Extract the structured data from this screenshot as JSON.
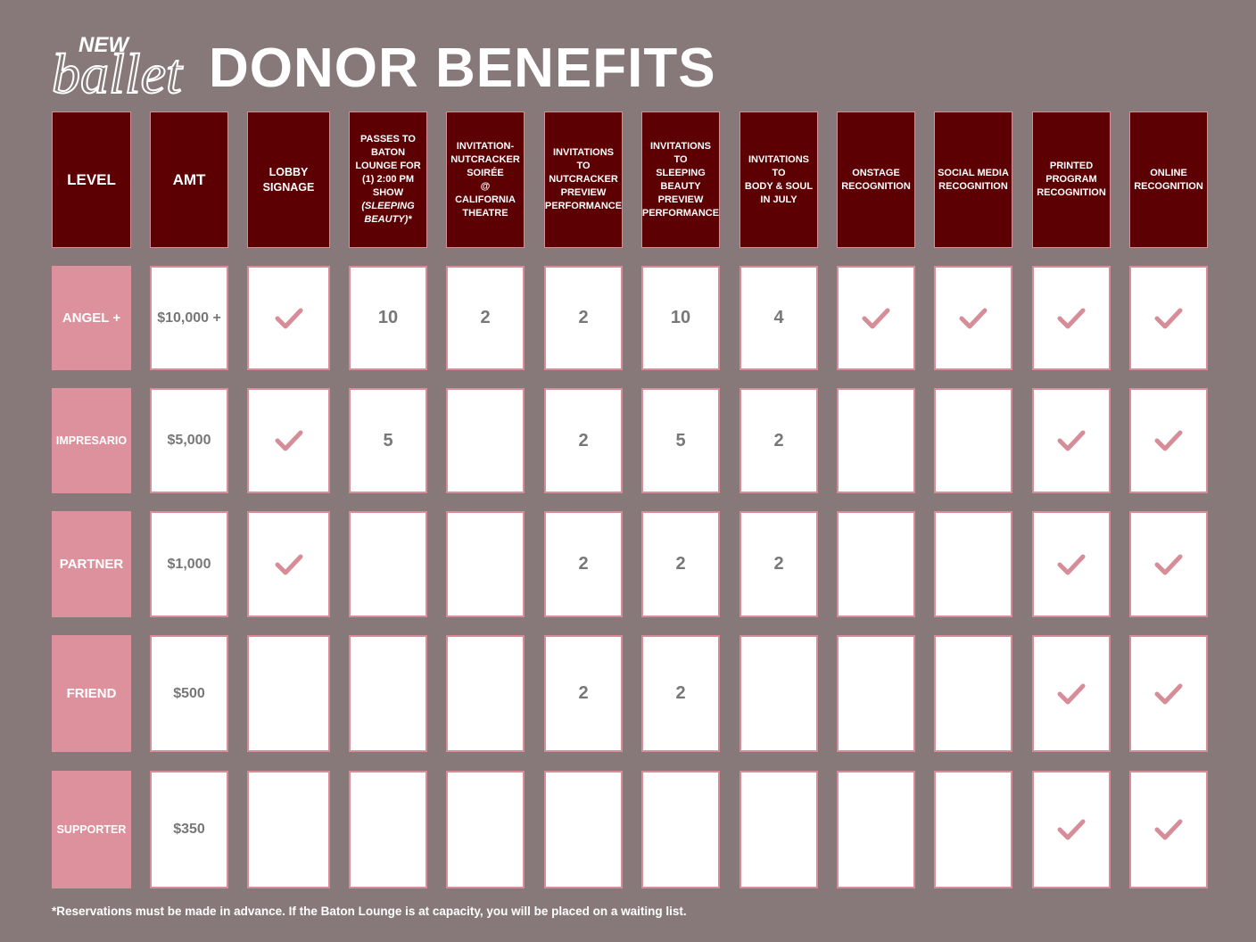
{
  "logo": {
    "line1": "NEW",
    "line2": "ballet"
  },
  "title": "DONOR BENEFITS",
  "colors": {
    "background": "#87797a",
    "header_fill": "#5c0003",
    "level_fill": "#dd919c",
    "check": "#d68d98",
    "value_text": "#777777"
  },
  "check_icon": "check-icon",
  "columns": [
    {
      "lines": [
        "LEVEL"
      ]
    },
    {
      "lines": [
        "AMT"
      ]
    },
    {
      "lines": [
        "LOBBY",
        "SIGNAGE"
      ]
    },
    {
      "lines": [
        "PASSES TO",
        "BATON",
        "LOUNGE FOR",
        "(1) 2:00 PM",
        "SHOW",
        "(SLEEPING",
        "BEAUTY)*"
      ]
    },
    {
      "lines": [
        "INVITATION-",
        "NUTCRACKER",
        "SOIRÉE",
        "@",
        "CALIFORNIA",
        "THEATRE"
      ]
    },
    {
      "lines": [
        "INVITATIONS",
        "TO",
        "NUTCRACKER",
        "PREVIEW",
        "PERFORMANCE"
      ]
    },
    {
      "lines": [
        "INVITATIONS",
        "TO",
        "SLEEPING",
        "BEAUTY",
        "PREVIEW",
        "PERFORMANCE"
      ]
    },
    {
      "lines": [
        "INVITATIONS",
        "TO",
        "BODY & SOUL",
        "IN JULY"
      ]
    },
    {
      "lines": [
        "ONSTAGE",
        "RECOGNITION"
      ]
    },
    {
      "lines": [
        "SOCIAL MEDIA",
        "RECOGNITION"
      ]
    },
    {
      "lines": [
        "PRINTED",
        "PROGRAM",
        "RECOGNITION"
      ]
    },
    {
      "lines": [
        "ONLINE",
        "RECOGNITION"
      ]
    }
  ],
  "rows": [
    {
      "level": "ANGEL +",
      "amount": "$10,000 +",
      "benefits": [
        "check",
        "10",
        "2",
        "2",
        "10",
        "4",
        "check",
        "check",
        "check",
        "check"
      ]
    },
    {
      "level": "IMPRESARIO",
      "amount": "$5,000",
      "benefits": [
        "check",
        "5",
        "",
        "2",
        "5",
        "2",
        "",
        "",
        "check",
        "check"
      ]
    },
    {
      "level": "PARTNER",
      "amount": "$1,000",
      "benefits": [
        "check",
        "",
        "",
        "2",
        "2",
        "2",
        "",
        "",
        "check",
        "check"
      ]
    },
    {
      "level": "FRIEND",
      "amount": "$500",
      "benefits": [
        "",
        "",
        "",
        "2",
        "2",
        "",
        "",
        "",
        "check",
        "check"
      ]
    },
    {
      "level": "SUPPORTER",
      "amount": "$350",
      "benefits": [
        "",
        "",
        "",
        "",
        "",
        "",
        "",
        "",
        "check",
        "check"
      ]
    }
  ],
  "footnote": "*Reservations must be made in advance. If the Baton Lounge is at capacity, you will be placed on a waiting list."
}
